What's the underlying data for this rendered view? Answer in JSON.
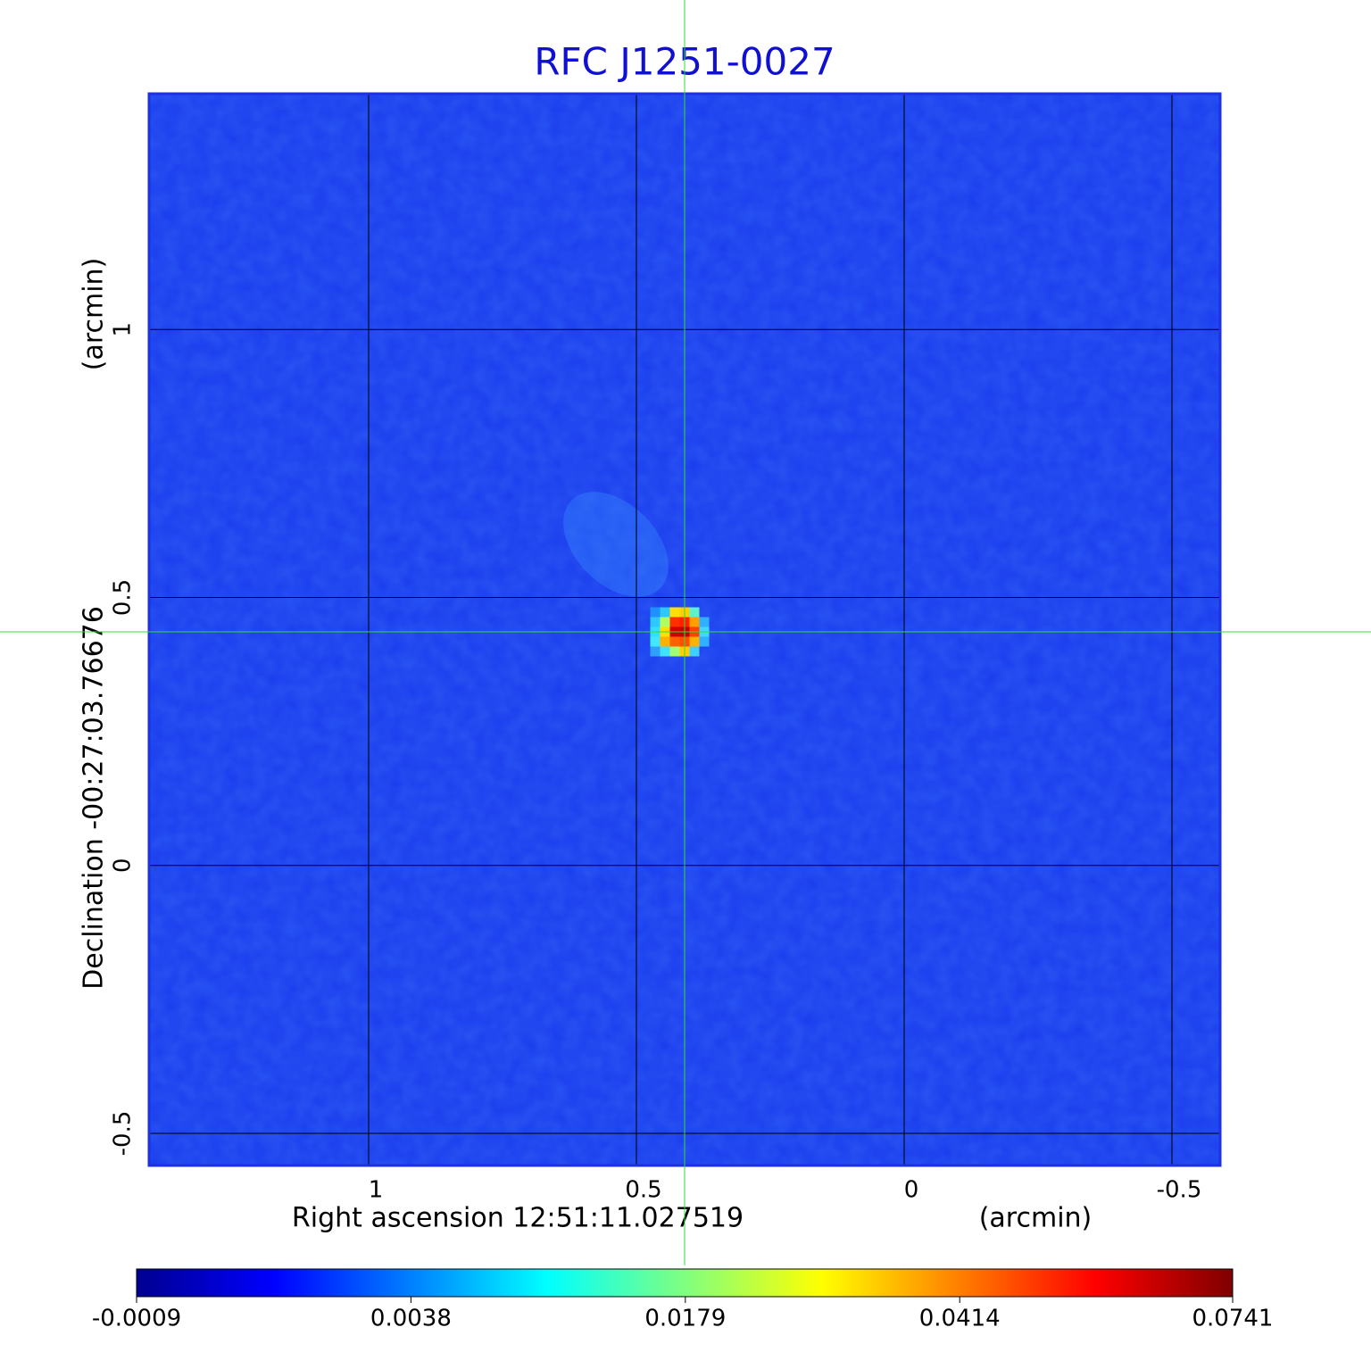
{
  "chart_data": {
    "type": "image",
    "title": "RFC J1251-0027",
    "x_label": "Right ascension  12:51:11.027519",
    "x_unit": "(arcmin)",
    "y_label": "Declination  -00:27:03.76676",
    "y_unit": "(arcmin)",
    "xlim": [
      1.41,
      -0.59
    ],
    "ylim": [
      -0.56,
      1.44
    ],
    "xticks": [
      1.0,
      0.5,
      0.0,
      -0.5
    ],
    "yticks": [
      1.0,
      0.5,
      0.0,
      -0.5
    ],
    "grid": true,
    "color_scale": "sqrt",
    "colormap": "jet",
    "clim": [
      -0.0009,
      0.0741
    ],
    "colorbar_ticks": [
      -0.0009,
      0.0038,
      0.0179,
      0.0414,
      0.0741
    ]
  }
}
